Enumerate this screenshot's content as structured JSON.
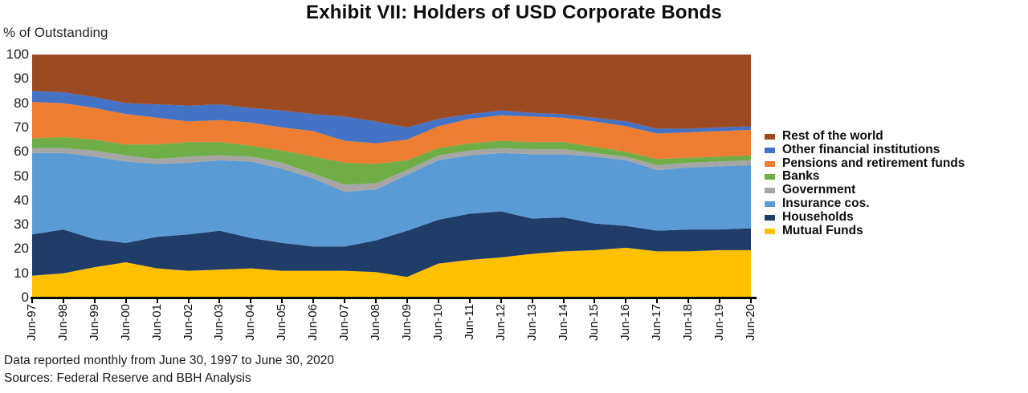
{
  "title": "Exhibit VII: Holders of USD Corporate Bonds",
  "y_axis": {
    "label": "% of Outstanding",
    "ticks": [
      0,
      10,
      20,
      30,
      40,
      50,
      60,
      70,
      80,
      90,
      100
    ],
    "min": 0,
    "max": 100
  },
  "footnotes": [
    "Data reported monthly from June 30, 1997 to June 30, 2020",
    "Sources: Federal Reserve and BBH Analysis"
  ],
  "chart_data": {
    "type": "area",
    "stacked": true,
    "title": "Exhibit VII: Holders of USD Corporate Bonds",
    "xlabel": "",
    "ylabel": "% of Outstanding",
    "ylim": [
      0,
      100
    ],
    "grid": false,
    "legend_position": "right",
    "note": "values are % of outstanding, sampled annually from monthly data; series listed bottom-to-top of stack; legend shown top-to-bottom as reverse of stack order",
    "categories": [
      "Jun-97",
      "Jun-98",
      "Jun-99",
      "Jun-00",
      "Jun-01",
      "Jun-02",
      "Jun-03",
      "Jun-04",
      "Jun-05",
      "Jun-06",
      "Jun-07",
      "Jun-08",
      "Jun-09",
      "Jun-10",
      "Jun-11",
      "Jun-12",
      "Jun-13",
      "Jun-14",
      "Jun-15",
      "Jun-16",
      "Jun-17",
      "Jun-18",
      "Jun-19",
      "Jun-20"
    ],
    "series": [
      {
        "name": "Mutual Funds",
        "color": "#FFC000",
        "values": [
          9,
          10,
          12.5,
          14.5,
          12,
          11,
          11.5,
          12,
          11,
          11,
          11,
          10.5,
          8.5,
          14,
          15.5,
          16.5,
          18,
          19,
          19.5,
          20.5,
          19,
          19,
          19.5,
          19.5
        ]
      },
      {
        "name": "Households",
        "color": "#1F3D68",
        "values": [
          17,
          18,
          11.5,
          8,
          13,
          15,
          16,
          12.5,
          11.5,
          10,
          10,
          13,
          19,
          18,
          19,
          19,
          14.5,
          14,
          11,
          9,
          8.5,
          9,
          8.5,
          9
        ]
      },
      {
        "name": "Insurance cos.",
        "color": "#5B9BD5",
        "values": [
          33.5,
          31.5,
          34,
          33.5,
          30,
          29.5,
          29,
          31.5,
          30.5,
          28,
          22.5,
          21,
          23,
          24.5,
          24,
          24,
          26.5,
          26,
          27.5,
          27,
          25,
          25.5,
          26,
          26
        ]
      },
      {
        "name": "Government",
        "color": "#A6A6A6",
        "values": [
          2,
          2,
          2.5,
          2.5,
          2,
          2.5,
          2,
          2,
          2.5,
          2,
          3,
          2.5,
          2,
          2,
          2,
          2,
          2,
          2,
          1.5,
          1.5,
          2,
          2,
          2,
          2
        ]
      },
      {
        "name": "Banks",
        "color": "#70AD47",
        "values": [
          4,
          4.5,
          4.5,
          4.5,
          6,
          6,
          5.5,
          4.5,
          5,
          7,
          9,
          8,
          4,
          3,
          3,
          3,
          3,
          3,
          2.5,
          2,
          2.5,
          2,
          2,
          2
        ]
      },
      {
        "name": "Pensions and retirement funds",
        "color": "#ED7D31",
        "values": [
          15,
          14,
          13,
          12.5,
          11,
          8.5,
          9,
          9.5,
          9.5,
          10.5,
          9,
          8.5,
          8.5,
          9,
          10,
          10.5,
          10.5,
          10,
          10.5,
          10.5,
          10.5,
          10.5,
          10.5,
          10.5
        ]
      },
      {
        "name": "Other financial institutions",
        "color": "#4472C4",
        "values": [
          4.5,
          4.5,
          4.5,
          4.5,
          5.5,
          6.5,
          6.5,
          6,
          7,
          7,
          10,
          9,
          5,
          3,
          2,
          2,
          1.5,
          1.5,
          1.5,
          2,
          2,
          1.5,
          1.5,
          1.5
        ]
      },
      {
        "name": "Rest of the world",
        "color": "#9C4A21",
        "values": [
          15,
          15.5,
          17.5,
          20,
          20.5,
          21,
          20.5,
          22,
          23,
          24.5,
          25.5,
          27.5,
          30,
          26.5,
          24.5,
          23,
          24,
          24.5,
          26,
          27.5,
          30.5,
          30.5,
          30,
          29.5
        ]
      }
    ]
  }
}
